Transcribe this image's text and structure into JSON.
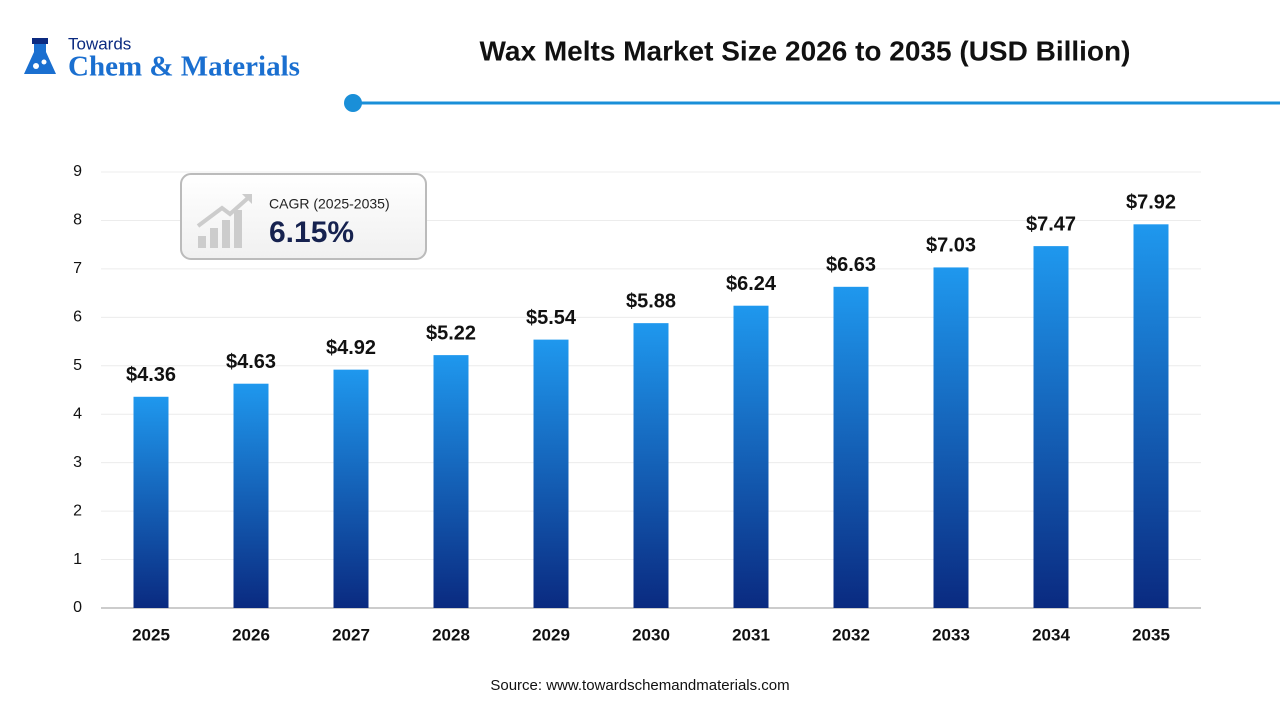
{
  "logo": {
    "line1": "Towards",
    "line2": "Chem & Materials"
  },
  "cagr": {
    "label": "CAGR (2025-2035)",
    "value": "6.15%"
  },
  "chart_data": {
    "type": "bar",
    "title": "Wax Melts Market Size 2026 to 2035 (USD Billion)",
    "categories": [
      "2025",
      "2026",
      "2027",
      "2028",
      "2029",
      "2030",
      "2031",
      "2032",
      "2033",
      "2034",
      "2035"
    ],
    "values": [
      4.36,
      4.63,
      4.92,
      5.22,
      5.54,
      5.88,
      6.24,
      6.63,
      7.03,
      7.47,
      7.92
    ],
    "value_labels": [
      "$4.36",
      "$4.63",
      "$4.92",
      "$5.22",
      "$5.54",
      "$5.88",
      "$6.24",
      "$6.63",
      "$7.03",
      "$7.47",
      "$7.92"
    ],
    "gradient": [
      "#1f98ee",
      "#0a2a80"
    ],
    "ylim": [
      0,
      9
    ],
    "yticks": [
      0,
      1,
      2,
      3,
      4,
      5,
      6,
      7,
      8,
      9
    ],
    "grid": true,
    "source": "Source: www.towardschemandmaterials.com"
  }
}
